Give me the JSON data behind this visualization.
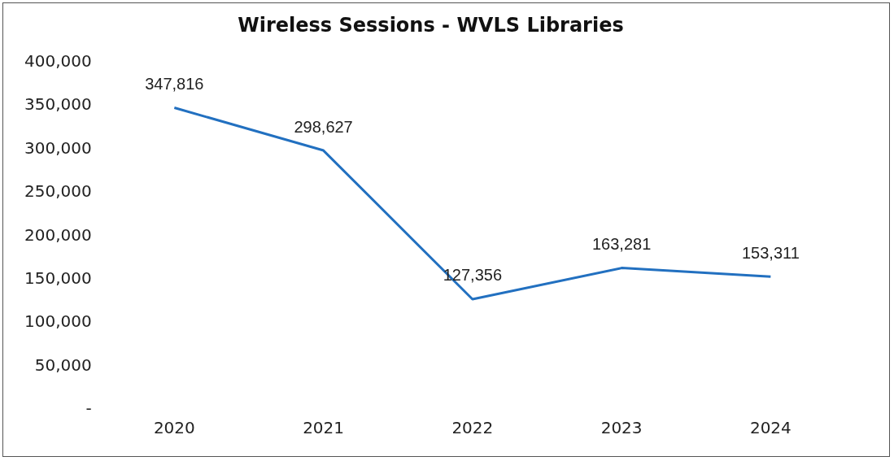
{
  "chart_data": {
    "type": "line",
    "title": "Wireless Sessions - WVLS Libraries",
    "categories": [
      "2020",
      "2021",
      "2022",
      "2023",
      "2024"
    ],
    "series": [
      {
        "color": "#2270c0",
        "values": [
          347816,
          298627,
          127356,
          163281,
          153311
        ],
        "value_labels": [
          "347,816",
          "298,627",
          "127,356",
          "163,281",
          "153,311"
        ]
      }
    ],
    "ylim": [
      0,
      400000
    ],
    "yticks": [
      {
        "value": 0,
        "label": "-"
      },
      {
        "value": 50000,
        "label": "50,000"
      },
      {
        "value": 100000,
        "label": "100,000"
      },
      {
        "value": 150000,
        "label": "150,000"
      },
      {
        "value": 200000,
        "label": "200,000"
      },
      {
        "value": 250000,
        "label": "250,000"
      },
      {
        "value": 300000,
        "label": "300,000"
      },
      {
        "value": 350000,
        "label": "350,000"
      },
      {
        "value": 400000,
        "label": "400,000"
      }
    ],
    "grid": false,
    "legend": false,
    "marker": "none",
    "line_style": "solid"
  }
}
